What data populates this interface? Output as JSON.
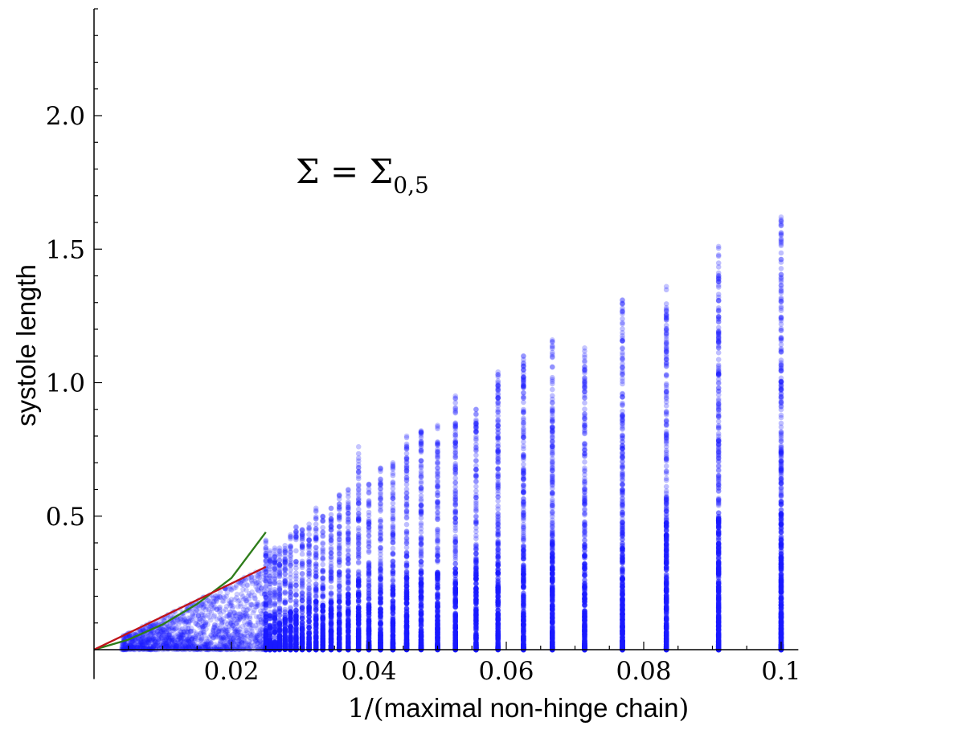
{
  "chart_data": {
    "type": "scatter",
    "title": "",
    "annotation": {
      "main": "Σ = Σ",
      "subscript": "0,5"
    },
    "xlabel": {
      "prefix": "1/(",
      "text": "maximal non-hinge chain",
      "suffix": ")"
    },
    "ylabel": "systole length",
    "xlim": [
      0,
      0.1025
    ],
    "ylim": [
      0,
      2.4
    ],
    "x_ticks": [
      0.02,
      0.04,
      0.06,
      0.08,
      0.1
    ],
    "x_tick_labels": [
      "0.02",
      "0.04",
      "0.06",
      "0.08",
      "0.1"
    ],
    "y_ticks": [
      0.5,
      1.0,
      1.5,
      2.0
    ],
    "y_tick_labels": [
      "0.5",
      "1.0",
      "1.5",
      "2.0"
    ],
    "grid": false,
    "legend": "none",
    "series": [
      {
        "kind": "scatter",
        "color": "#1a1aff",
        "note_columns": "x = 1/n for n = 10..40 plus dense cloud for n > 40",
        "column_max_y": [
          [
            0.1,
            1.62
          ],
          [
            0.0909,
            1.51
          ],
          [
            0.0833,
            1.36
          ],
          [
            0.0769,
            1.31
          ],
          [
            0.0714,
            1.13
          ],
          [
            0.0667,
            1.16
          ],
          [
            0.0625,
            1.1
          ],
          [
            0.0588,
            1.04
          ],
          [
            0.0556,
            0.9
          ],
          [
            0.0526,
            0.95
          ],
          [
            0.05,
            0.84
          ],
          [
            0.0476,
            0.82
          ],
          [
            0.0455,
            0.8
          ],
          [
            0.0435,
            0.7
          ],
          [
            0.0417,
            0.68
          ],
          [
            0.04,
            0.62
          ],
          [
            0.0385,
            0.76
          ],
          [
            0.037,
            0.6
          ],
          [
            0.0357,
            0.58
          ],
          [
            0.0345,
            0.53
          ],
          [
            0.0333,
            0.5
          ],
          [
            0.0323,
            0.53
          ],
          [
            0.0313,
            0.47
          ],
          [
            0.0303,
            0.45
          ],
          [
            0.0294,
            0.46
          ],
          [
            0.0286,
            0.43
          ],
          [
            0.0278,
            0.39
          ],
          [
            0.027,
            0.38
          ],
          [
            0.0263,
            0.38
          ],
          [
            0.0256,
            0.37
          ],
          [
            0.025,
            0.41
          ]
        ]
      },
      {
        "kind": "line",
        "color": "#2e7d1a",
        "shape": "quadratic",
        "points": [
          [
            0,
            0
          ],
          [
            0.005,
            0.0375
          ],
          [
            0.01,
            0.0947
          ],
          [
            0.015,
            0.171
          ],
          [
            0.02,
            0.2684
          ],
          [
            0.025,
            0.44
          ]
        ]
      },
      {
        "kind": "line",
        "color": "#c0141a",
        "shape": "linear",
        "points": [
          [
            0,
            0
          ],
          [
            0.025,
            0.31
          ]
        ]
      }
    ]
  }
}
